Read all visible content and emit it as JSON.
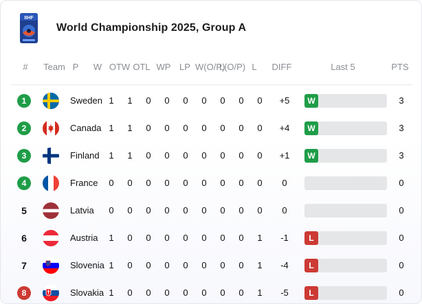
{
  "title": "World Championship 2025, Group A",
  "logo_icon": "iihf-logo",
  "headers": {
    "rank": "#",
    "team": "Team",
    "p": "P",
    "w": "W",
    "otw": "OTW",
    "otl": "OTL",
    "wp": "WP",
    "lp": "LP",
    "wop": "W(O/P)",
    "lop": "L(O/P)",
    "l": "L",
    "diff": "DIFF",
    "last5": "Last 5",
    "pts": "PTS"
  },
  "colors": {
    "qualify_green": "#1f9d48",
    "relegation_red": "#cc3a34",
    "win": "#1f9d48",
    "loss": "#cc3a34"
  },
  "rows": [
    {
      "rank": "1",
      "rank_style": "green",
      "flag": "sweden-flag",
      "team": "Sweden",
      "p": "1",
      "w": "1",
      "otw": "0",
      "otl": "0",
      "wp": "0",
      "lp": "0",
      "wop": "0",
      "lop": "0",
      "l": "0",
      "diff": "+5",
      "last5": "W",
      "pts": "3"
    },
    {
      "rank": "2",
      "rank_style": "green",
      "flag": "canada-flag",
      "team": "Canada",
      "p": "1",
      "w": "1",
      "otw": "0",
      "otl": "0",
      "wp": "0",
      "lp": "0",
      "wop": "0",
      "lop": "0",
      "l": "0",
      "diff": "+4",
      "last5": "W",
      "pts": "3"
    },
    {
      "rank": "3",
      "rank_style": "green",
      "flag": "finland-flag",
      "team": "Finland",
      "p": "1",
      "w": "1",
      "otw": "0",
      "otl": "0",
      "wp": "0",
      "lp": "0",
      "wop": "0",
      "lop": "0",
      "l": "0",
      "diff": "+1",
      "last5": "W",
      "pts": "3"
    },
    {
      "rank": "4",
      "rank_style": "green",
      "flag": "france-flag",
      "team": "France",
      "p": "0",
      "w": "0",
      "otw": "0",
      "otl": "0",
      "wp": "0",
      "lp": "0",
      "wop": "0",
      "lop": "0",
      "l": "0",
      "diff": "0",
      "last5": "",
      "pts": "0"
    },
    {
      "rank": "5",
      "rank_style": "plain",
      "flag": "latvia-flag",
      "team": "Latvia",
      "p": "0",
      "w": "0",
      "otw": "0",
      "otl": "0",
      "wp": "0",
      "lp": "0",
      "wop": "0",
      "lop": "0",
      "l": "0",
      "diff": "0",
      "last5": "",
      "pts": "0"
    },
    {
      "rank": "6",
      "rank_style": "plain",
      "flag": "austria-flag",
      "team": "Austria",
      "p": "1",
      "w": "0",
      "otw": "0",
      "otl": "0",
      "wp": "0",
      "lp": "0",
      "wop": "0",
      "lop": "0",
      "l": "1",
      "diff": "-1",
      "last5": "L",
      "pts": "0"
    },
    {
      "rank": "7",
      "rank_style": "plain",
      "flag": "slovenia-flag",
      "team": "Slovenia",
      "p": "1",
      "w": "0",
      "otw": "0",
      "otl": "0",
      "wp": "0",
      "lp": "0",
      "wop": "0",
      "lop": "0",
      "l": "1",
      "diff": "-4",
      "last5": "L",
      "pts": "0"
    },
    {
      "rank": "8",
      "rank_style": "red",
      "flag": "slovakia-flag",
      "team": "Slovakia",
      "p": "1",
      "w": "0",
      "otw": "0",
      "otl": "0",
      "wp": "0",
      "lp": "0",
      "wop": "0",
      "lop": "0",
      "l": "1",
      "diff": "-5",
      "last5": "L",
      "pts": "0"
    }
  ]
}
